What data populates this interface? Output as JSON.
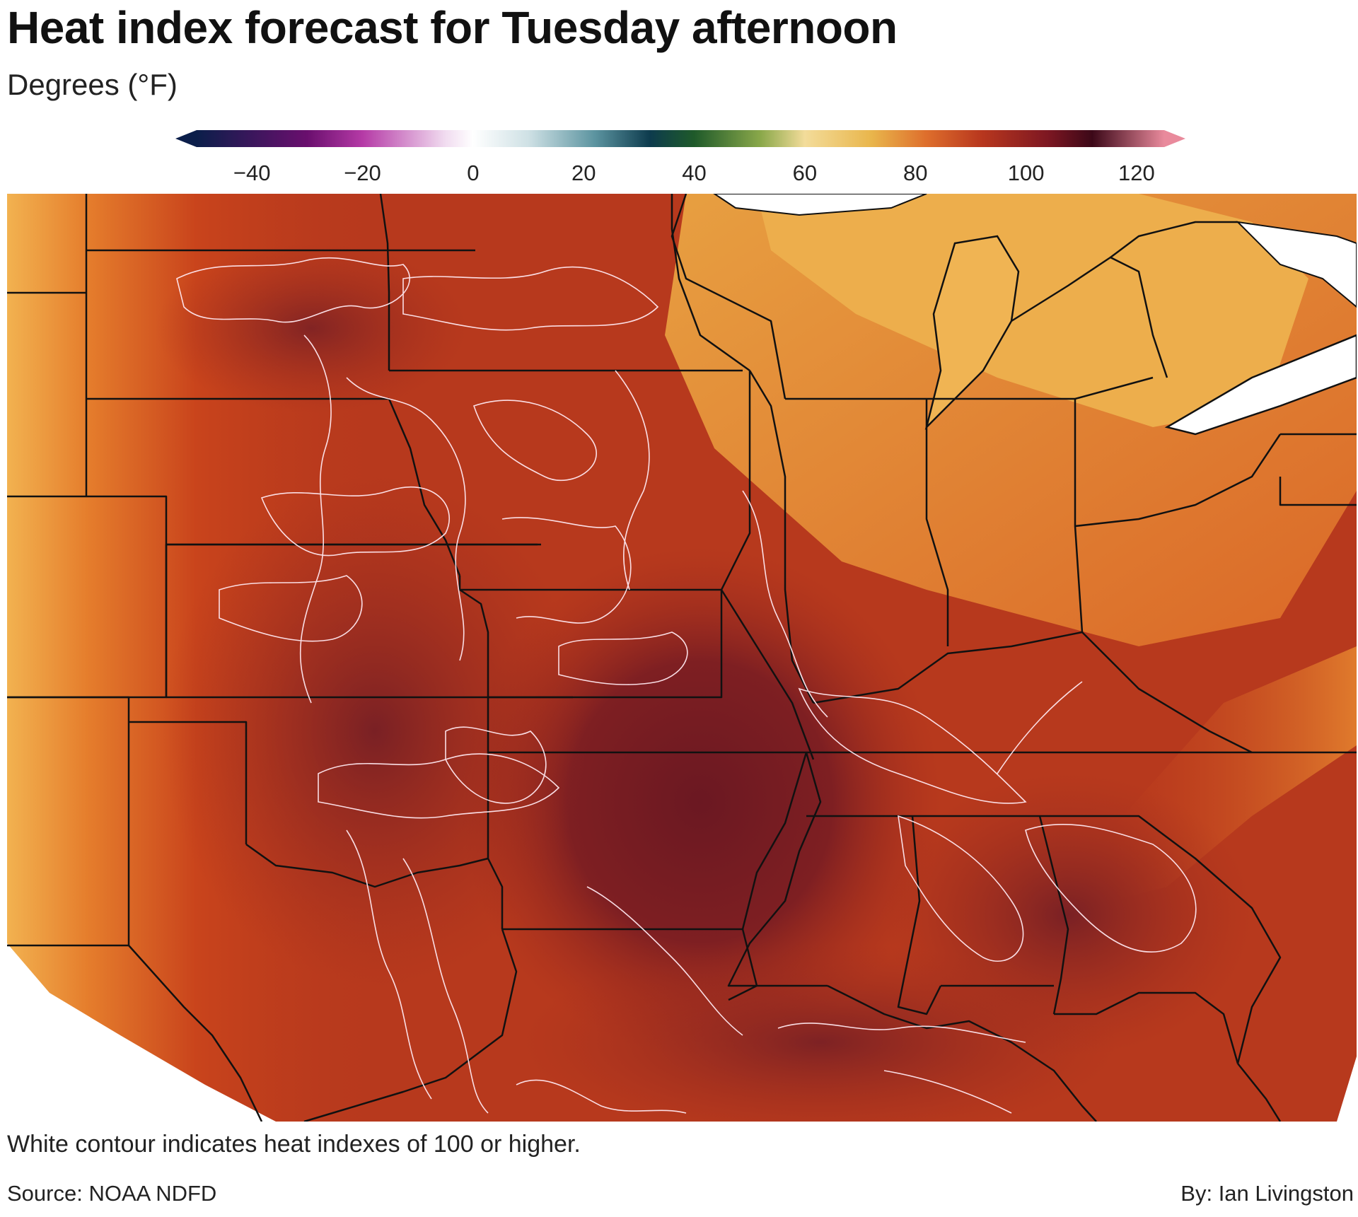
{
  "header": {
    "title": "Heat index forecast for Tuesday afternoon",
    "subtitle": "Degrees (°F)"
  },
  "legend": {
    "ticks": [
      "−40",
      "−20",
      "0",
      "20",
      "40",
      "60",
      "80",
      "100",
      "120"
    ],
    "range": [
      -50,
      125
    ],
    "colors": [
      {
        "v": -50,
        "c": "#0b1e4a"
      },
      {
        "v": -30,
        "c": "#6a0f6e"
      },
      {
        "v": -20,
        "c": "#b53aa6"
      },
      {
        "v": -5,
        "c": "#f1dcf0"
      },
      {
        "v": 0,
        "c": "#ffffff"
      },
      {
        "v": 10,
        "c": "#cfe1e5"
      },
      {
        "v": 22,
        "c": "#5c94a0"
      },
      {
        "v": 32,
        "c": "#0d3b4d"
      },
      {
        "v": 40,
        "c": "#1f5a2a"
      },
      {
        "v": 52,
        "c": "#8aa84a"
      },
      {
        "v": 60,
        "c": "#f3dc9a"
      },
      {
        "v": 72,
        "c": "#e9b64c"
      },
      {
        "v": 82,
        "c": "#de6e2c"
      },
      {
        "v": 92,
        "c": "#b8371e"
      },
      {
        "v": 104,
        "c": "#7d1722"
      },
      {
        "v": 112,
        "c": "#3c0818"
      },
      {
        "v": 125,
        "c": "#e98a9c"
      }
    ]
  },
  "map": {
    "contour_threshold": 100,
    "colors": {
      "hottest": "#6e1a24",
      "hot": "#9a2a1e",
      "warm": "#c2401c",
      "mild": "#e0732a",
      "cool": "#efa94a",
      "lake": "#ffffff",
      "border": "#111111",
      "contour": "#ffe7ef"
    }
  },
  "footer": {
    "caption": "White contour indicates heat indexes of 100 or higher.",
    "source": "Source: NOAA NDFD",
    "byline": "By: Ian Livingston"
  }
}
